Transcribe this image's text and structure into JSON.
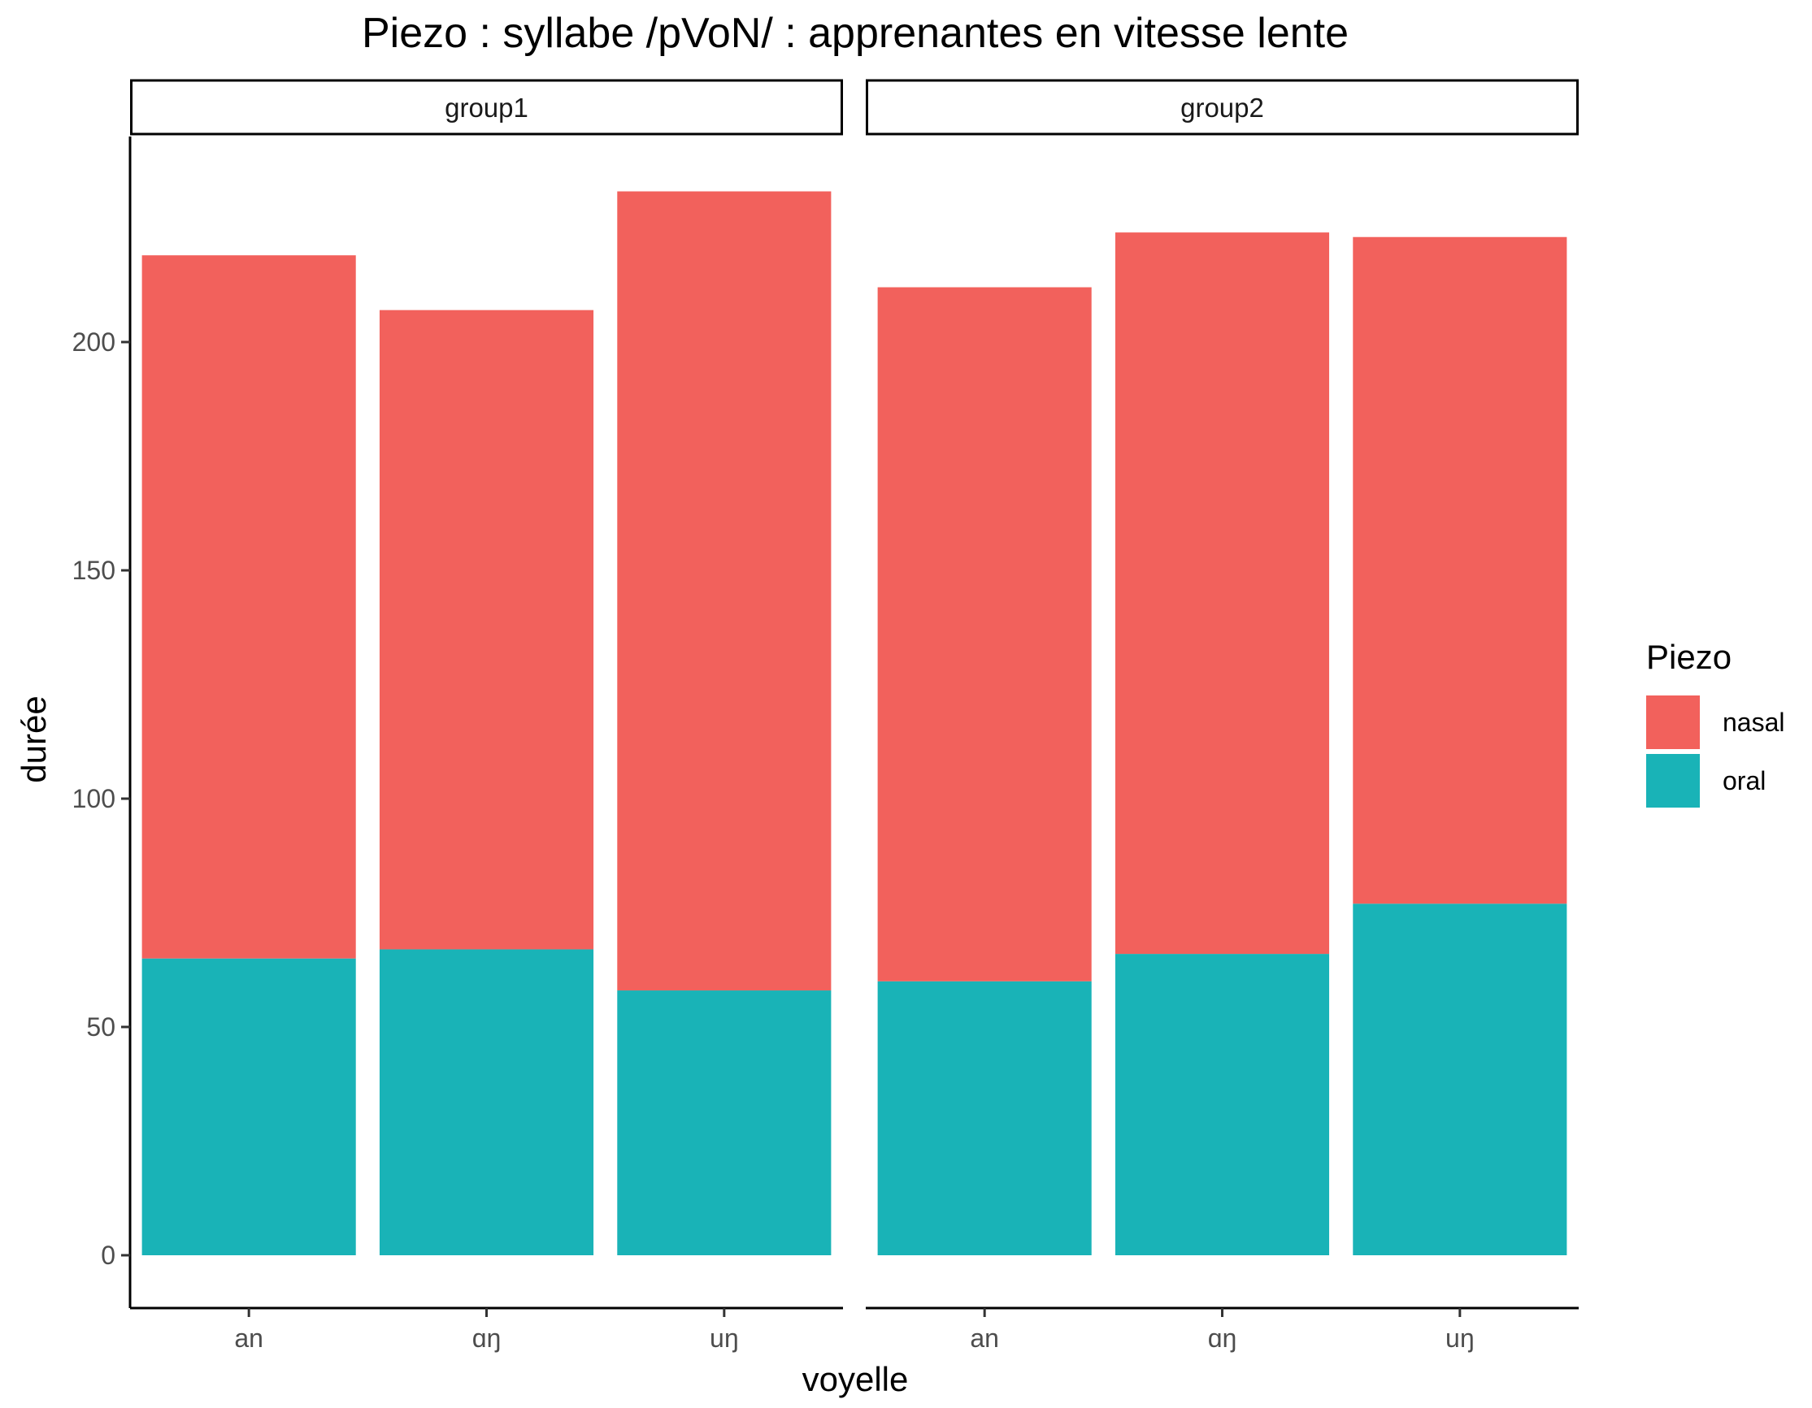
{
  "chart_data": {
    "type": "bar",
    "stacked": true,
    "title": "Piezo : syllabe /pVoN/ : apprenantes en vitesse lente",
    "xlabel": "voyelle",
    "ylabel": "durée",
    "ylim": [
      0,
      240
    ],
    "yticks": [
      0,
      50,
      100,
      150,
      200
    ],
    "grid": false,
    "legend": {
      "title": "Piezo",
      "position": "right",
      "entries": [
        "nasal",
        "oral"
      ]
    },
    "colors": {
      "nasal": "#F2615C",
      "oral": "#19B3B7"
    },
    "categories": [
      "an",
      "ɑŋ",
      "uŋ"
    ],
    "panels": [
      {
        "label": "group1",
        "series": [
          {
            "name": "oral",
            "values": [
              65,
              67,
              58
            ]
          },
          {
            "name": "nasal",
            "values": [
              154,
              140,
              175
            ]
          }
        ]
      },
      {
        "label": "group2",
        "series": [
          {
            "name": "oral",
            "values": [
              60,
              66,
              77
            ]
          },
          {
            "name": "nasal",
            "values": [
              152,
              158,
              146
            ]
          }
        ]
      }
    ]
  }
}
